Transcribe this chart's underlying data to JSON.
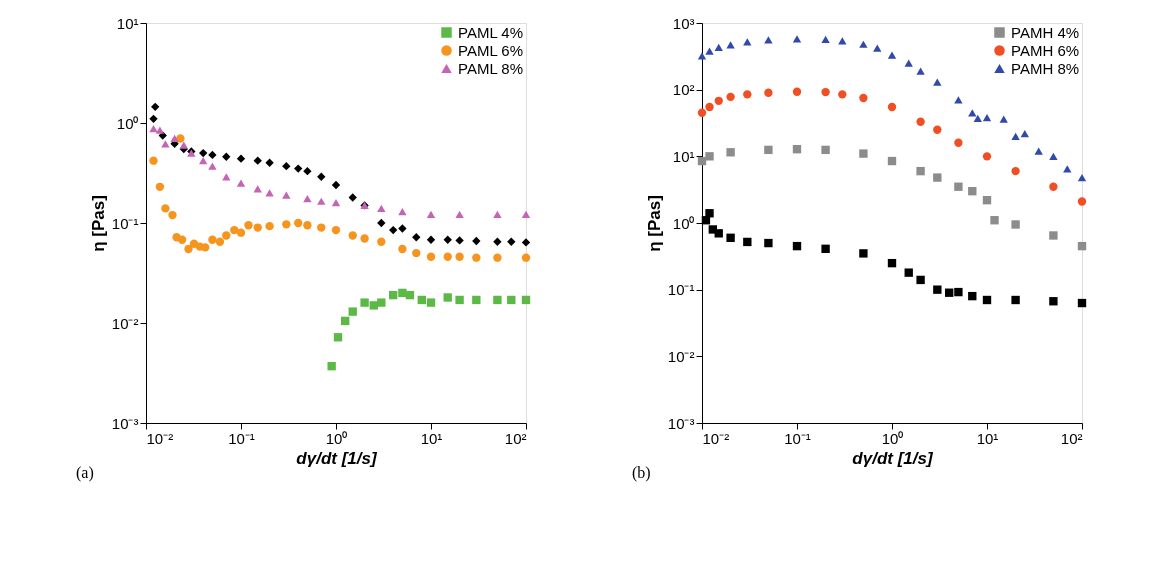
{
  "chart_data": [
    {
      "type": "scatter",
      "xlabel": "dγ/dt  [1/s]",
      "ylabel": "η [Pas]",
      "log": "xy",
      "grid": false,
      "legend": "top right",
      "annotations": [
        "(a)"
      ],
      "xlim": [
        0.01,
        100
      ],
      "ylim": [
        0.001,
        10
      ],
      "xticks": [
        {
          "value": 0.01,
          "label": "10⁻²"
        },
        {
          "value": 0.1,
          "label": "10⁻¹"
        },
        {
          "value": 1,
          "label": "10⁰"
        },
        {
          "value": 10,
          "label": "10¹"
        },
        {
          "value": 100,
          "label": "10²"
        }
      ],
      "yticks": [
        {
          "value": 0.001,
          "label": "10⁻³"
        },
        {
          "value": 0.01,
          "label": "10⁻²"
        },
        {
          "value": 0.1,
          "label": "10⁻¹"
        },
        {
          "value": 1,
          "label": "10⁰"
        },
        {
          "value": 10,
          "label": "10¹"
        }
      ],
      "series": [
        {
          "color": "#000000",
          "marker": "diamond",
          "x": [
            0.012,
            0.0125,
            0.015,
            0.02,
            0.025,
            0.03,
            0.04,
            0.05,
            0.07,
            0.1,
            0.15,
            0.2,
            0.3,
            0.4,
            0.5,
            0.7,
            1,
            1.5,
            2,
            3,
            4,
            5,
            7,
            10,
            15,
            20,
            30,
            50,
            70,
            100
          ],
          "values": [
            1.1,
            1.45,
            0.75,
            0.62,
            0.55,
            0.52,
            0.5,
            0.48,
            0.46,
            0.44,
            0.42,
            0.4,
            0.37,
            0.35,
            0.33,
            0.29,
            0.24,
            0.18,
            0.15,
            0.1,
            0.085,
            0.088,
            0.072,
            0.068,
            0.068,
            0.067,
            0.066,
            0.065,
            0.065,
            0.064
          ]
        },
        {
          "name": "PAML 4%",
          "color": "#5cb946",
          "marker": "square",
          "x": [
            0.9,
            1.05,
            1.25,
            1.5,
            2,
            2.5,
            3,
            4,
            5,
            6,
            8,
            10,
            15,
            20,
            30,
            50,
            70,
            100
          ],
          "values": [
            0.0037,
            0.0072,
            0.0105,
            0.013,
            0.016,
            0.015,
            0.016,
            0.019,
            0.02,
            0.019,
            0.017,
            0.016,
            0.018,
            0.017,
            0.017,
            0.017,
            0.017,
            0.017
          ]
        },
        {
          "name": "PAML 6%",
          "color": "#f7941d",
          "marker": "circle",
          "x": [
            0.012,
            0.014,
            0.016,
            0.019,
            0.021,
            0.023,
            0.024,
            0.028,
            0.032,
            0.037,
            0.042,
            0.05,
            0.06,
            0.07,
            0.085,
            0.1,
            0.12,
            0.15,
            0.2,
            0.3,
            0.4,
            0.5,
            0.7,
            1,
            1.5,
            2,
            3,
            5,
            7,
            10,
            15,
            20,
            30,
            50,
            100
          ],
          "values": [
            0.42,
            0.23,
            0.14,
            0.12,
            0.072,
            0.7,
            0.068,
            0.055,
            0.062,
            0.058,
            0.057,
            0.068,
            0.065,
            0.075,
            0.085,
            0.08,
            0.095,
            0.09,
            0.093,
            0.097,
            0.1,
            0.095,
            0.09,
            0.085,
            0.075,
            0.07,
            0.065,
            0.055,
            0.05,
            0.046,
            0.046,
            0.046,
            0.045,
            0.045,
            0.045
          ]
        },
        {
          "name": "PAML 8%",
          "color": "#c564b4",
          "marker": "triangle",
          "x": [
            0.012,
            0.014,
            0.016,
            0.02,
            0.025,
            0.03,
            0.04,
            0.05,
            0.07,
            0.1,
            0.15,
            0.2,
            0.3,
            0.5,
            0.7,
            1,
            2,
            3,
            5,
            10,
            20,
            50,
            100
          ],
          "values": [
            0.88,
            0.85,
            0.62,
            0.7,
            0.6,
            0.5,
            0.42,
            0.37,
            0.29,
            0.25,
            0.22,
            0.2,
            0.19,
            0.175,
            0.165,
            0.16,
            0.15,
            0.14,
            0.13,
            0.122,
            0.122,
            0.122,
            0.122
          ]
        }
      ]
    },
    {
      "type": "scatter",
      "xlabel": "dγ/dt  [1/s]",
      "ylabel": "η [Pas]",
      "log": "xy",
      "grid": false,
      "legend": "top right",
      "annotations": [
        "(b)"
      ],
      "xlim": [
        0.01,
        100
      ],
      "ylim": [
        0.001,
        1000
      ],
      "xticks": [
        {
          "value": 0.01,
          "label": "10⁻²"
        },
        {
          "value": 0.1,
          "label": "10⁻¹"
        },
        {
          "value": 1,
          "label": "10⁰"
        },
        {
          "value": 10,
          "label": "10¹"
        },
        {
          "value": 100,
          "label": "10²"
        }
      ],
      "yticks": [
        {
          "value": 0.001,
          "label": "10⁻³"
        },
        {
          "value": 0.01,
          "label": "10⁻²"
        },
        {
          "value": 0.1,
          "label": "10⁻¹"
        },
        {
          "value": 1,
          "label": "10⁰"
        },
        {
          "value": 10,
          "label": "10¹"
        },
        {
          "value": 100,
          "label": "10²"
        },
        {
          "value": 1000,
          "label": "10³"
        }
      ],
      "series": [
        {
          "color": "#000000",
          "marker": "square",
          "x": [
            0.011,
            0.012,
            0.013,
            0.015,
            0.02,
            0.03,
            0.05,
            0.1,
            0.2,
            0.5,
            1,
            1.5,
            2,
            3,
            4,
            5,
            7,
            10,
            20,
            50,
            100
          ],
          "values": [
            1.1,
            1.4,
            0.8,
            0.7,
            0.6,
            0.52,
            0.5,
            0.45,
            0.41,
            0.35,
            0.25,
            0.18,
            0.14,
            0.1,
            0.09,
            0.092,
            0.08,
            0.07,
            0.07,
            0.067,
            0.063
          ]
        },
        {
          "name": "PAMH 4%",
          "color": "#8c8c8c",
          "marker": "square",
          "x": [
            0.01,
            0.012,
            0.02,
            0.05,
            0.1,
            0.2,
            0.5,
            1,
            2,
            3,
            5,
            7,
            10,
            12,
            20,
            50,
            100
          ],
          "values": [
            8.5,
            10,
            11.5,
            12.5,
            12.8,
            12.5,
            11,
            8.5,
            6,
            4.8,
            3.5,
            3,
            2.2,
            1.1,
            0.95,
            0.65,
            0.45
          ]
        },
        {
          "name": "PAMH 6%",
          "color": "#f04e23",
          "marker": "circle",
          "x": [
            0.01,
            0.012,
            0.015,
            0.02,
            0.03,
            0.05,
            0.1,
            0.2,
            0.3,
            0.5,
            1,
            2,
            3,
            5,
            10,
            20,
            50,
            100
          ],
          "values": [
            45,
            55,
            68,
            78,
            85,
            90,
            93,
            92,
            85,
            75,
            55,
            33,
            25,
            16,
            10,
            6,
            3.5,
            2.1
          ]
        },
        {
          "name": "PAMH 8%",
          "color": "#2f4aa8",
          "marker": "triangle",
          "x": [
            0.01,
            0.012,
            0.015,
            0.02,
            0.03,
            0.05,
            0.1,
            0.2,
            0.3,
            0.5,
            0.7,
            1,
            1.5,
            2,
            3,
            5,
            7,
            8,
            10,
            15,
            20,
            25,
            35,
            50,
            70,
            100
          ],
          "values": [
            320,
            380,
            430,
            470,
            520,
            560,
            580,
            570,
            540,
            480,
            420,
            330,
            250,
            190,
            130,
            70,
            45,
            37,
            38,
            36,
            20,
            22,
            12,
            10,
            6.5,
            4.8
          ]
        }
      ]
    }
  ]
}
